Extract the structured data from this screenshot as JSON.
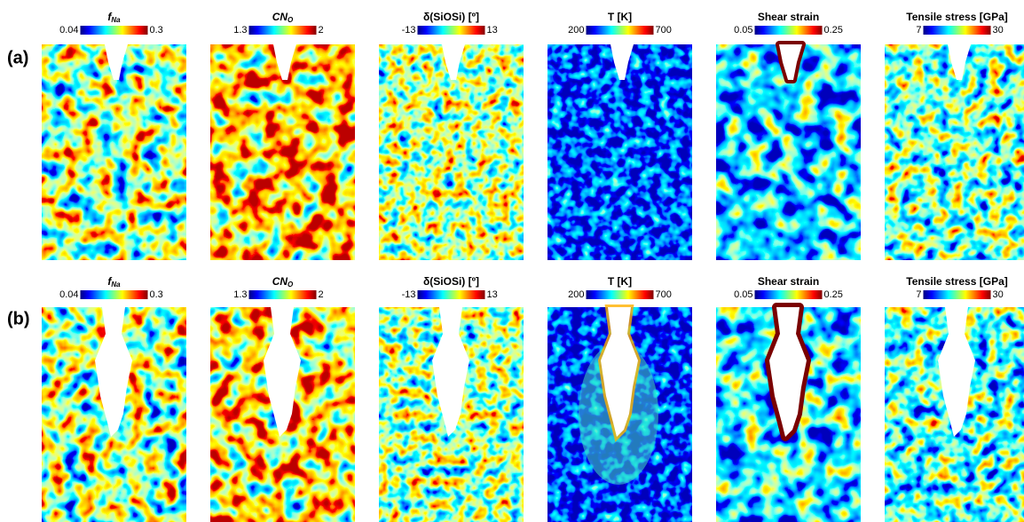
{
  "rows": [
    {
      "label": "(a)",
      "panels": [
        {
          "title": {
            "main": "f",
            "sub": "Na"
          },
          "min": "0.04",
          "max": "0.3"
        },
        {
          "title": {
            "main": "CN",
            "sub": "O"
          },
          "min": "1.3",
          "max": "2"
        },
        {
          "title": {
            "main": "δ(SiOSi) [º]"
          },
          "min": "-13",
          "max": "13"
        },
        {
          "title": {
            "main": "T [K]"
          },
          "min": "200",
          "max": "700"
        },
        {
          "title": {
            "main": "Shear strain"
          },
          "min": "0.05",
          "max": "0.25"
        },
        {
          "title": {
            "main": "Tensile stress [GPa]"
          },
          "min": "7",
          "max": "30"
        }
      ]
    },
    {
      "label": "(b)",
      "panels": [
        {
          "title": {
            "main": "f",
            "sub": "Na"
          },
          "min": "0.04",
          "max": "0.3"
        },
        {
          "title": {
            "main": "CN",
            "sub": "O"
          },
          "min": "1.3",
          "max": "2"
        },
        {
          "title": {
            "main": "δ(SiOSi) [º]"
          },
          "min": "-13",
          "max": "13"
        },
        {
          "title": {
            "main": "T [K]"
          },
          "min": "200",
          "max": "700"
        },
        {
          "title": {
            "main": "Shear strain"
          },
          "min": "0.05",
          "max": "0.25"
        },
        {
          "title": {
            "main": "Tensile stress [GPa]"
          },
          "min": "7",
          "max": "30"
        }
      ]
    }
  ]
}
